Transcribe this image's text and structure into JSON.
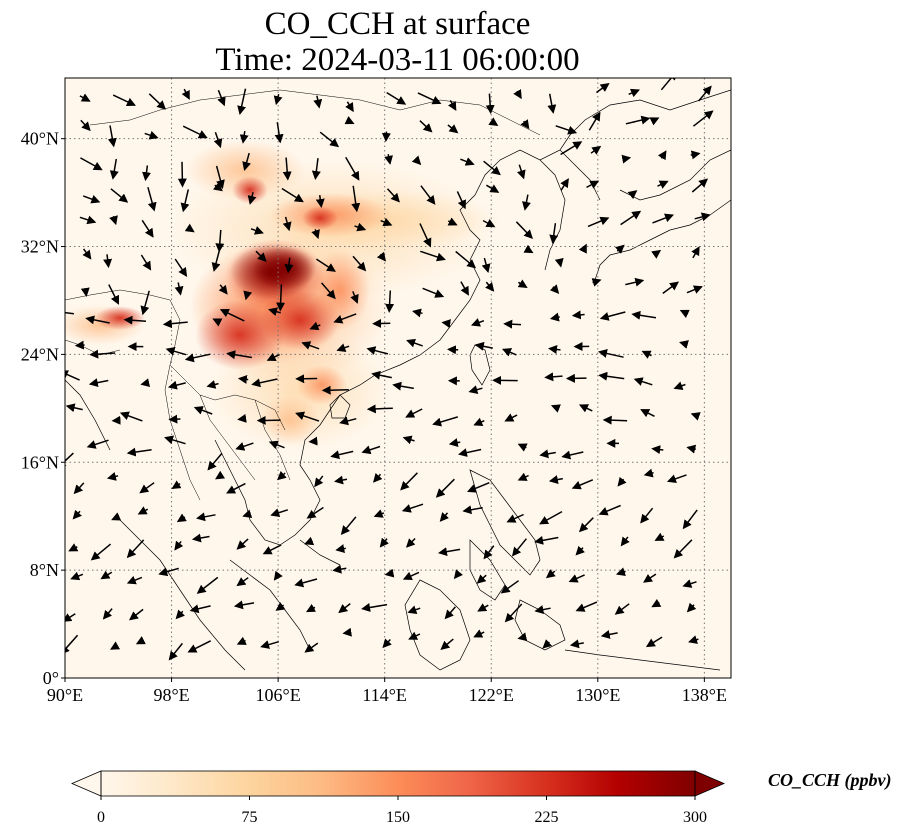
{
  "title_line1": "CO_CCH at surface",
  "title_line2": "Time: 2024-03-11 06:00:00",
  "map": {
    "lon_range": [
      90,
      140
    ],
    "lat_range": [
      0,
      44.5
    ],
    "lon_ticks": [
      90,
      98,
      106,
      114,
      122,
      130,
      138
    ],
    "lat_ticks": [
      0,
      8,
      16,
      24,
      32,
      40
    ],
    "lon_tick_labels": [
      "90°E",
      "98°E",
      "106°E",
      "114°E",
      "122°E",
      "130°E",
      "138°E"
    ],
    "lat_tick_labels": [
      "0°",
      "8°N",
      "16°N",
      "24°N",
      "32°N",
      "40°N"
    ],
    "gridlines": true,
    "grid_style": "dotted",
    "colormap": "OrRd",
    "features": [
      "coastlines",
      "country borders",
      "wind vectors"
    ]
  },
  "colorbar": {
    "label": "CO_CCH (ppbv)",
    "ticks": [
      0,
      75,
      150,
      225,
      300
    ],
    "tick_labels": [
      "0",
      "75",
      "150",
      "225",
      "300"
    ],
    "extend": "both",
    "colors": [
      "#fff7ec",
      "#fee8c8",
      "#fdd49e",
      "#fdbb84",
      "#fc8d59",
      "#ef6548",
      "#d7301f",
      "#b30000",
      "#7f0000"
    ]
  }
}
